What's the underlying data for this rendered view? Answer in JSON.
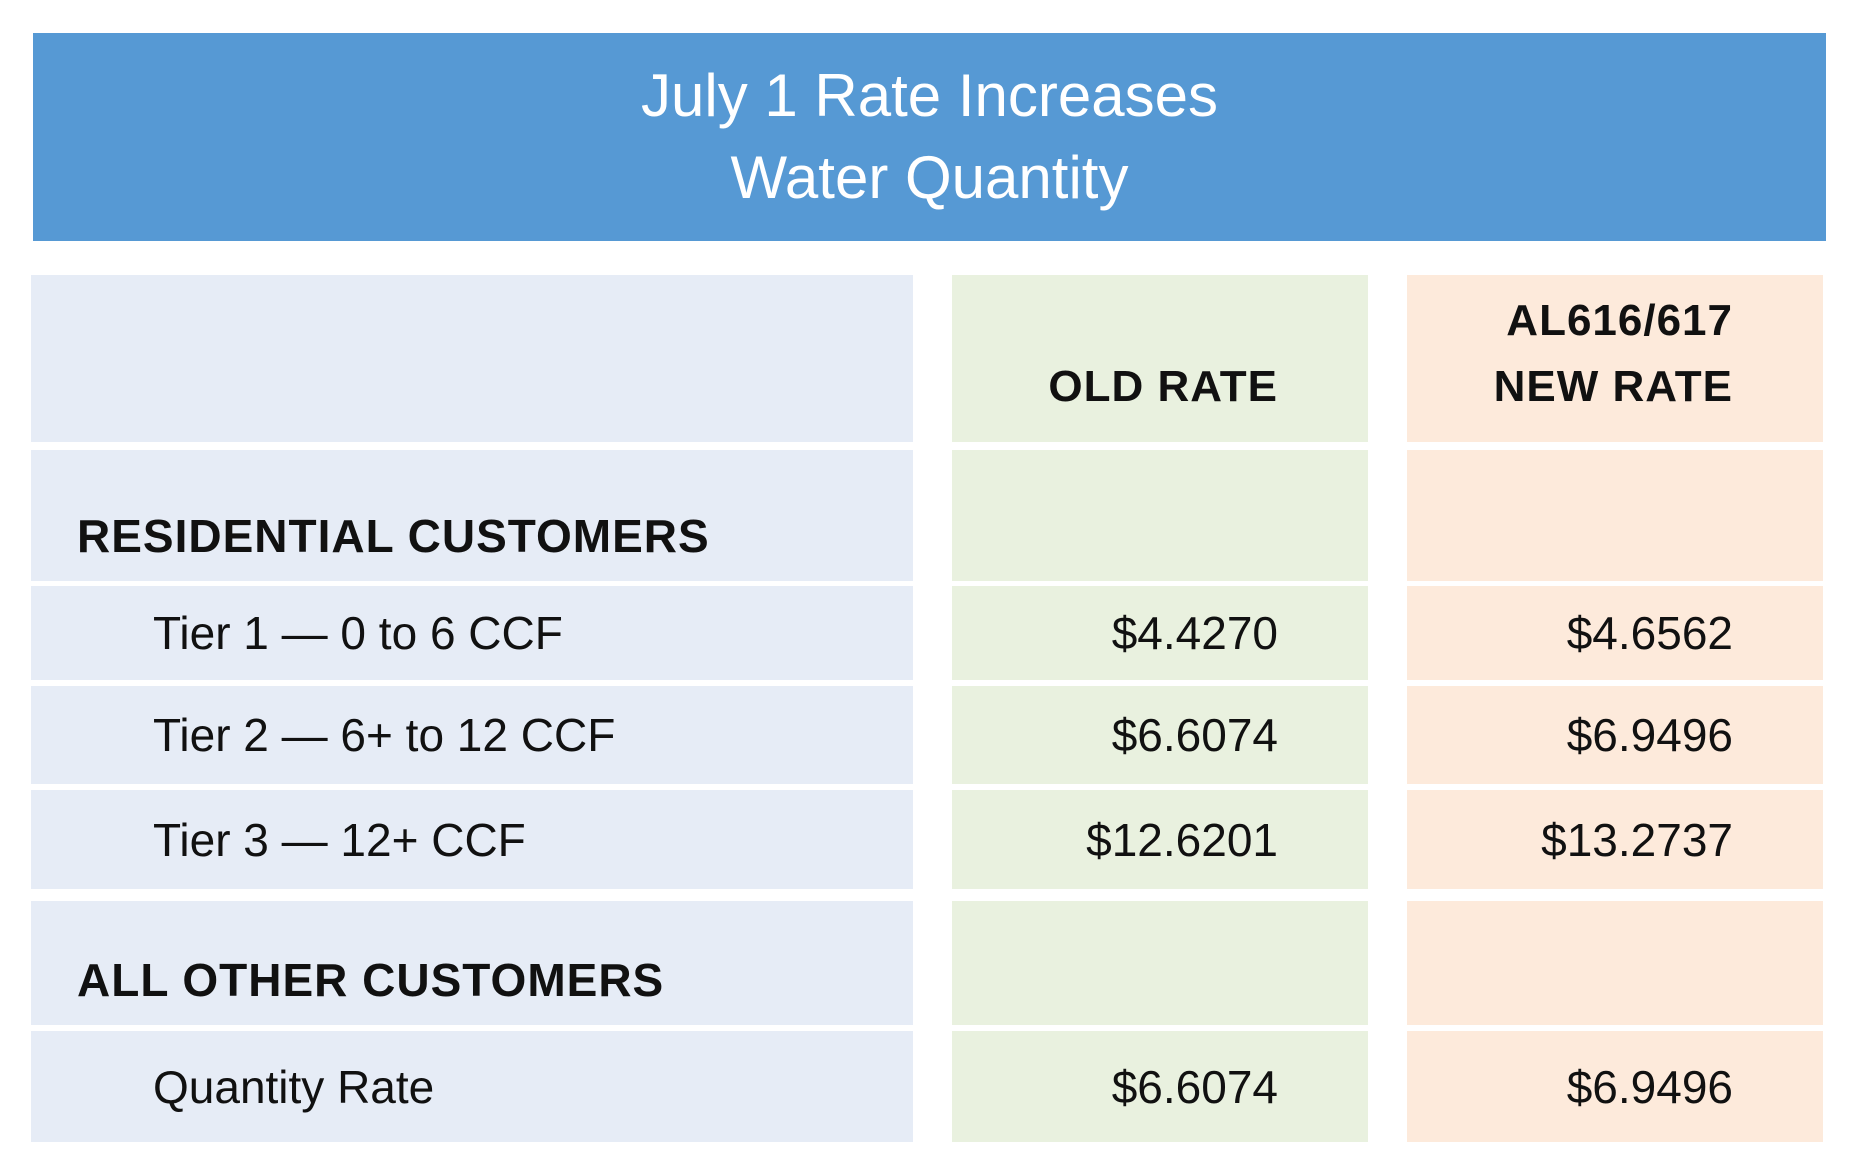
{
  "title": {
    "line1": "July 1 Rate Increases",
    "line2": "Water Quantity"
  },
  "columns": {
    "old": "OLD RATE",
    "new_line1": "AL616/617",
    "new_line2": "NEW RATE"
  },
  "sections": [
    {
      "label": "RESIDENTIAL CUSTOMERS",
      "rows": [
        {
          "label": "Tier 1 — 0 to 6 CCF",
          "old": "$4.4270",
          "new": "$4.6562"
        },
        {
          "label": "Tier 2 — 6+ to 12 CCF",
          "old": "$6.6074",
          "new": "$6.9496"
        },
        {
          "label": "Tier 3 — 12+ CCF",
          "old": "$12.6201",
          "new": "$13.2737"
        }
      ]
    },
    {
      "label": "ALL OTHER CUSTOMERS",
      "rows": [
        {
          "label": "Quantity Rate",
          "old": "$6.6074",
          "new": "$6.9496"
        }
      ]
    }
  ],
  "colors": {
    "banner": "#5699d4",
    "label_col": "#e6ecf6",
    "old_col": "#e9f1df",
    "new_col": "#fdeadb"
  }
}
